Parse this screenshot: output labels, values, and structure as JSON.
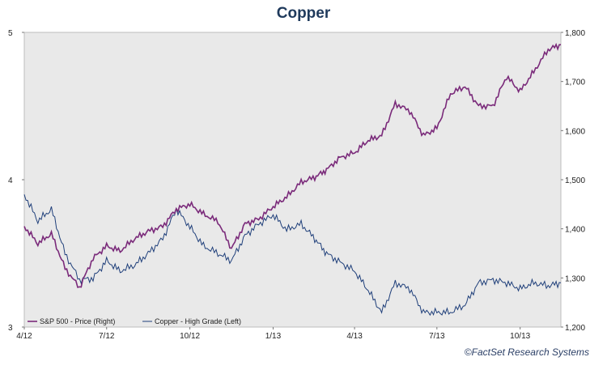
{
  "colors": {
    "sp500": "#7a2a7a",
    "copper": "#1f3f7a",
    "plot_bg": "#e9e9e9"
  },
  "chart_data": {
    "type": "line",
    "title": "Copper",
    "credit": "©FactSet Research Systems",
    "x_ticks": [
      "4/12",
      "7/12",
      "10/12",
      "1/13",
      "4/13",
      "7/13",
      "10/13"
    ],
    "x_range": [
      "2012-04-01",
      "2013-11-15"
    ],
    "y_left": {
      "ticks": [
        "5",
        "4",
        "3"
      ],
      "range": [
        3,
        5
      ]
    },
    "y_right": {
      "ticks": [
        "1,800",
        "1,700",
        "1,600",
        "1,500",
        "1,400",
        "1,300",
        "1,200"
      ],
      "range": [
        1200,
        1800
      ]
    },
    "legend": [
      "S&P 500 - Price (Right)",
      "Copper - High Grade (Left)"
    ],
    "series": [
      {
        "name": "S&P 500 - Price (Right)",
        "axis": "right",
        "x": [
          "2012-04-01",
          "2012-04-16",
          "2012-05-01",
          "2012-05-16",
          "2012-06-01",
          "2012-06-16",
          "2012-07-01",
          "2012-07-16",
          "2012-08-01",
          "2012-08-16",
          "2012-09-01",
          "2012-09-16",
          "2012-10-01",
          "2012-10-16",
          "2012-11-01",
          "2012-11-16",
          "2012-12-01",
          "2012-12-16",
          "2013-01-01",
          "2013-01-16",
          "2013-02-01",
          "2013-02-16",
          "2013-03-01",
          "2013-03-16",
          "2013-04-01",
          "2013-04-16",
          "2013-05-01",
          "2013-05-16",
          "2013-06-01",
          "2013-06-16",
          "2013-07-01",
          "2013-07-16",
          "2013-08-01",
          "2013-08-16",
          "2013-09-01",
          "2013-09-16",
          "2013-10-01",
          "2013-10-16",
          "2013-11-01",
          "2013-11-15"
        ],
        "values": [
          1405,
          1370,
          1390,
          1320,
          1280,
          1340,
          1365,
          1355,
          1380,
          1395,
          1405,
          1440,
          1450,
          1430,
          1415,
          1360,
          1410,
          1420,
          1445,
          1465,
          1495,
          1505,
          1520,
          1545,
          1555,
          1580,
          1590,
          1655,
          1640,
          1590,
          1605,
          1675,
          1690,
          1650,
          1650,
          1710,
          1680,
          1720,
          1765,
          1775
        ]
      },
      {
        "name": "Copper - High Grade (Left)",
        "axis": "left",
        "x": [
          "2012-04-01",
          "2012-04-16",
          "2012-05-01",
          "2012-05-16",
          "2012-06-01",
          "2012-06-16",
          "2012-07-01",
          "2012-07-16",
          "2012-08-01",
          "2012-08-16",
          "2012-09-01",
          "2012-09-16",
          "2012-10-01",
          "2012-10-16",
          "2012-11-01",
          "2012-11-16",
          "2012-12-01",
          "2012-12-16",
          "2013-01-01",
          "2013-01-16",
          "2013-02-01",
          "2013-02-16",
          "2013-03-01",
          "2013-03-16",
          "2013-04-01",
          "2013-04-16",
          "2013-05-01",
          "2013-05-16",
          "2013-06-01",
          "2013-06-16",
          "2013-07-01",
          "2013-07-16",
          "2013-08-01",
          "2013-08-16",
          "2013-09-01",
          "2013-09-16",
          "2013-10-01",
          "2013-10-16",
          "2013-11-01",
          "2013-11-15"
        ],
        "values": [
          3.9,
          3.72,
          3.8,
          3.5,
          3.32,
          3.33,
          3.45,
          3.38,
          3.42,
          3.5,
          3.6,
          3.8,
          3.68,
          3.55,
          3.5,
          3.45,
          3.62,
          3.7,
          3.76,
          3.66,
          3.7,
          3.6,
          3.5,
          3.44,
          3.38,
          3.25,
          3.1,
          3.3,
          3.26,
          3.1,
          3.1,
          3.1,
          3.15,
          3.3,
          3.32,
          3.3,
          3.26,
          3.3,
          3.28,
          3.3
        ]
      }
    ]
  }
}
